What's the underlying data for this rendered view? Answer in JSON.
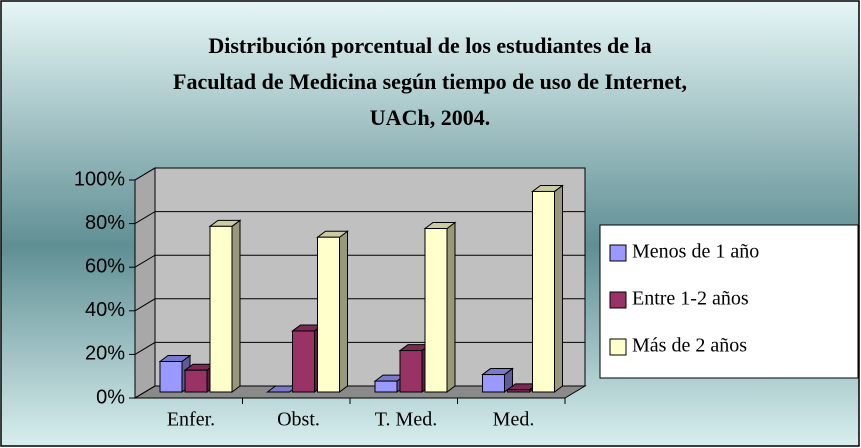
{
  "chart_data": {
    "type": "bar3d",
    "title": [
      "Distribución porcentual de los estudiantes de la",
      "Facultad de Medicina según tiempo de uso de Internet,",
      "UACh, 2004."
    ],
    "categories": [
      "Enfer.",
      "Obst.",
      "T. Med.",
      "Med."
    ],
    "series": [
      {
        "name": "Menos de 1 año",
        "color": "#9999ff",
        "values": [
          14,
          0,
          5,
          8
        ]
      },
      {
        "name": "Entre 1-2 años",
        "color": "#993366",
        "values": [
          10,
          28,
          19,
          1
        ]
      },
      {
        "name": "Más de 2 años",
        "color": "#ffffcc",
        "values": [
          76,
          71,
          75,
          92
        ]
      }
    ],
    "ylim": [
      0,
      100
    ],
    "yticks": [
      {
        "value": 0,
        "label": "0%"
      },
      {
        "value": 20,
        "label": "20%"
      },
      {
        "value": 40,
        "label": "40%"
      },
      {
        "value": 60,
        "label": "60%"
      },
      {
        "value": 80,
        "label": "80%"
      },
      {
        "value": 100,
        "label": "100%"
      }
    ],
    "grid": true,
    "legend": "right"
  }
}
